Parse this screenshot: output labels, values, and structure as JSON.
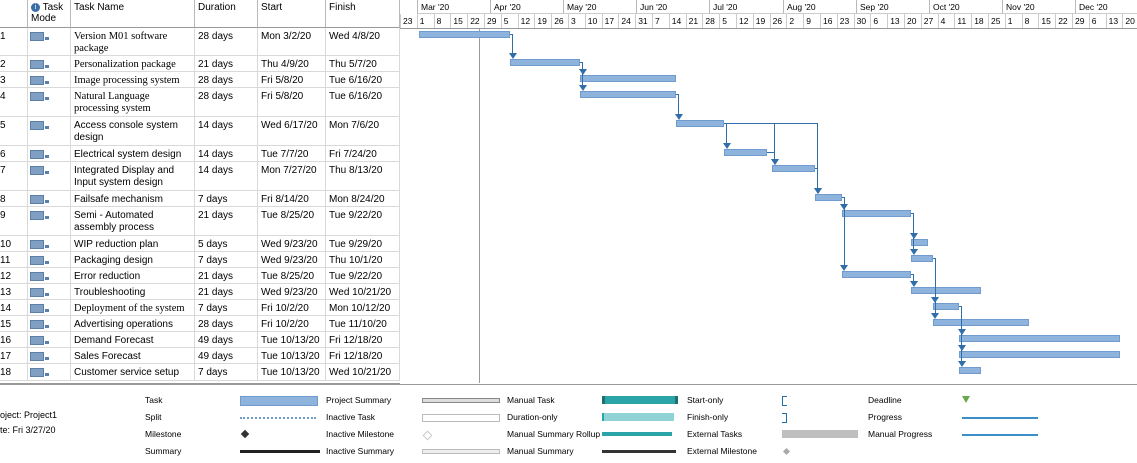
{
  "headers": {
    "info": "i",
    "mode": "Task Mode",
    "name": "Task Name",
    "duration": "Duration",
    "start": "Start",
    "finish": "Finish"
  },
  "tasks": [
    {
      "id": "1",
      "name": "Version M01 software package",
      "duration": "28 days",
      "start": "Mon 3/2/20",
      "finish": "Wed 4/8/20",
      "serif": true
    },
    {
      "id": "2",
      "name": "Personalization package",
      "duration": "21 days",
      "start": "Thu 4/9/20",
      "finish": "Thu 5/7/20",
      "serif": true
    },
    {
      "id": "3",
      "name": "Image processing system",
      "duration": "28 days",
      "start": "Fri 5/8/20",
      "finish": "Tue 6/16/20",
      "serif": true
    },
    {
      "id": "4",
      "name": "Natural Language processing system",
      "duration": "28 days",
      "start": "Fri 5/8/20",
      "finish": "Tue 6/16/20",
      "serif": true
    },
    {
      "id": "5",
      "name": "Access console system design",
      "duration": "14 days",
      "start": "Wed 6/17/20",
      "finish": "Mon 7/6/20",
      "serif": false
    },
    {
      "id": "6",
      "name": "Electrical system design",
      "duration": "14 days",
      "start": "Tue 7/7/20",
      "finish": "Fri 7/24/20",
      "serif": false
    },
    {
      "id": "7",
      "name": "Integrated Display and Input system design",
      "duration": "14 days",
      "start": "Mon 7/27/20",
      "finish": "Thu 8/13/20",
      "serif": false
    },
    {
      "id": "8",
      "name": "Failsafe mechanism",
      "duration": "7 days",
      "start": "Fri 8/14/20",
      "finish": "Mon 8/24/20",
      "serif": false
    },
    {
      "id": "9",
      "name": "Semi - Automated assembly process",
      "duration": "21 days",
      "start": "Tue 8/25/20",
      "finish": "Tue 9/22/20",
      "serif": false
    },
    {
      "id": "10",
      "name": "WIP reduction plan",
      "duration": "5 days",
      "start": "Wed 9/23/20",
      "finish": "Tue 9/29/20",
      "serif": false
    },
    {
      "id": "11",
      "name": "Packaging design",
      "duration": "7 days",
      "start": "Wed 9/23/20",
      "finish": "Thu 10/1/20",
      "serif": false
    },
    {
      "id": "12",
      "name": "Error reduction",
      "duration": "21 days",
      "start": "Tue 8/25/20",
      "finish": "Tue 9/22/20",
      "serif": false
    },
    {
      "id": "13",
      "name": "Troubleshooting",
      "duration": "21 days",
      "start": "Wed 9/23/20",
      "finish": "Wed 10/21/20",
      "serif": false
    },
    {
      "id": "14",
      "name": "Deployment of the system",
      "duration": "7 days",
      "start": "Fri 10/2/20",
      "finish": "Mon 10/12/20",
      "serif": true
    },
    {
      "id": "15",
      "name": "Advertising operations",
      "duration": "28 days",
      "start": "Fri 10/2/20",
      "finish": "Tue 11/10/20",
      "serif": false
    },
    {
      "id": "16",
      "name": "Demand Forecast",
      "duration": "49 days",
      "start": "Tue 10/13/20",
      "finish": "Fri 12/18/20",
      "serif": false
    },
    {
      "id": "17",
      "name": "Sales Forecast",
      "duration": "49 days",
      "start": "Tue 10/13/20",
      "finish": "Fri 12/18/20",
      "serif": false
    },
    {
      "id": "18",
      "name": "Customer service setup",
      "duration": "7 days",
      "start": "Tue 10/13/20",
      "finish": "Wed 10/21/20",
      "serif": false
    }
  ],
  "timescale": {
    "months": [
      "Mar '20",
      "Apr '20",
      "May '20",
      "Jun '20",
      "Jul '20",
      "Aug '20",
      "Sep '20",
      "Oct '20",
      "Nov '20",
      "Dec '20"
    ],
    "days": [
      "23",
      "1",
      "8",
      "15",
      "22",
      "29",
      "5",
      "12",
      "19",
      "26",
      "3",
      "10",
      "17",
      "24",
      "31",
      "7",
      "14",
      "21",
      "28",
      "5",
      "12",
      "19",
      "26",
      "2",
      "9",
      "16",
      "23",
      "30",
      "6",
      "13",
      "20",
      "27",
      "4",
      "11",
      "18",
      "25",
      "1",
      "8",
      "15",
      "22",
      "29",
      "6",
      "13",
      "20"
    ]
  },
  "colors": {
    "bar": "#8eb4dd",
    "link": "#2f6ea6"
  },
  "project": {
    "project_line": "oject: Project1",
    "date_line": "te: Fri 3/27/20"
  },
  "legend": [
    {
      "label": "Task",
      "symbol": "task"
    },
    {
      "label": "Split",
      "symbol": "split"
    },
    {
      "label": "Milestone",
      "symbol": "milestone"
    },
    {
      "label": "Summary",
      "symbol": "summary"
    },
    {
      "label": "Project Summary",
      "symbol": "project-summary"
    },
    {
      "label": "Inactive Task",
      "symbol": "inactive-task"
    },
    {
      "label": "Inactive Milestone",
      "symbol": "inactive-milestone"
    },
    {
      "label": "Inactive Summary",
      "symbol": "inactive-summary"
    },
    {
      "label": "Manual Task",
      "symbol": "manual-task"
    },
    {
      "label": "Duration-only",
      "symbol": "duration-only"
    },
    {
      "label": "Manual Summary Rollup",
      "symbol": "manual-summary-rollup"
    },
    {
      "label": "Manual Summary",
      "symbol": "manual-summary"
    },
    {
      "label": "Start-only",
      "symbol": "start-only"
    },
    {
      "label": "Finish-only",
      "symbol": "finish-only"
    },
    {
      "label": "External Tasks",
      "symbol": "external-tasks"
    },
    {
      "label": "External Milestone",
      "symbol": "external-milestone"
    },
    {
      "label": "Deadline",
      "symbol": "deadline"
    },
    {
      "label": "Progress",
      "symbol": "progress"
    },
    {
      "label": "Manual Progress",
      "symbol": "manual-progress"
    }
  ]
}
